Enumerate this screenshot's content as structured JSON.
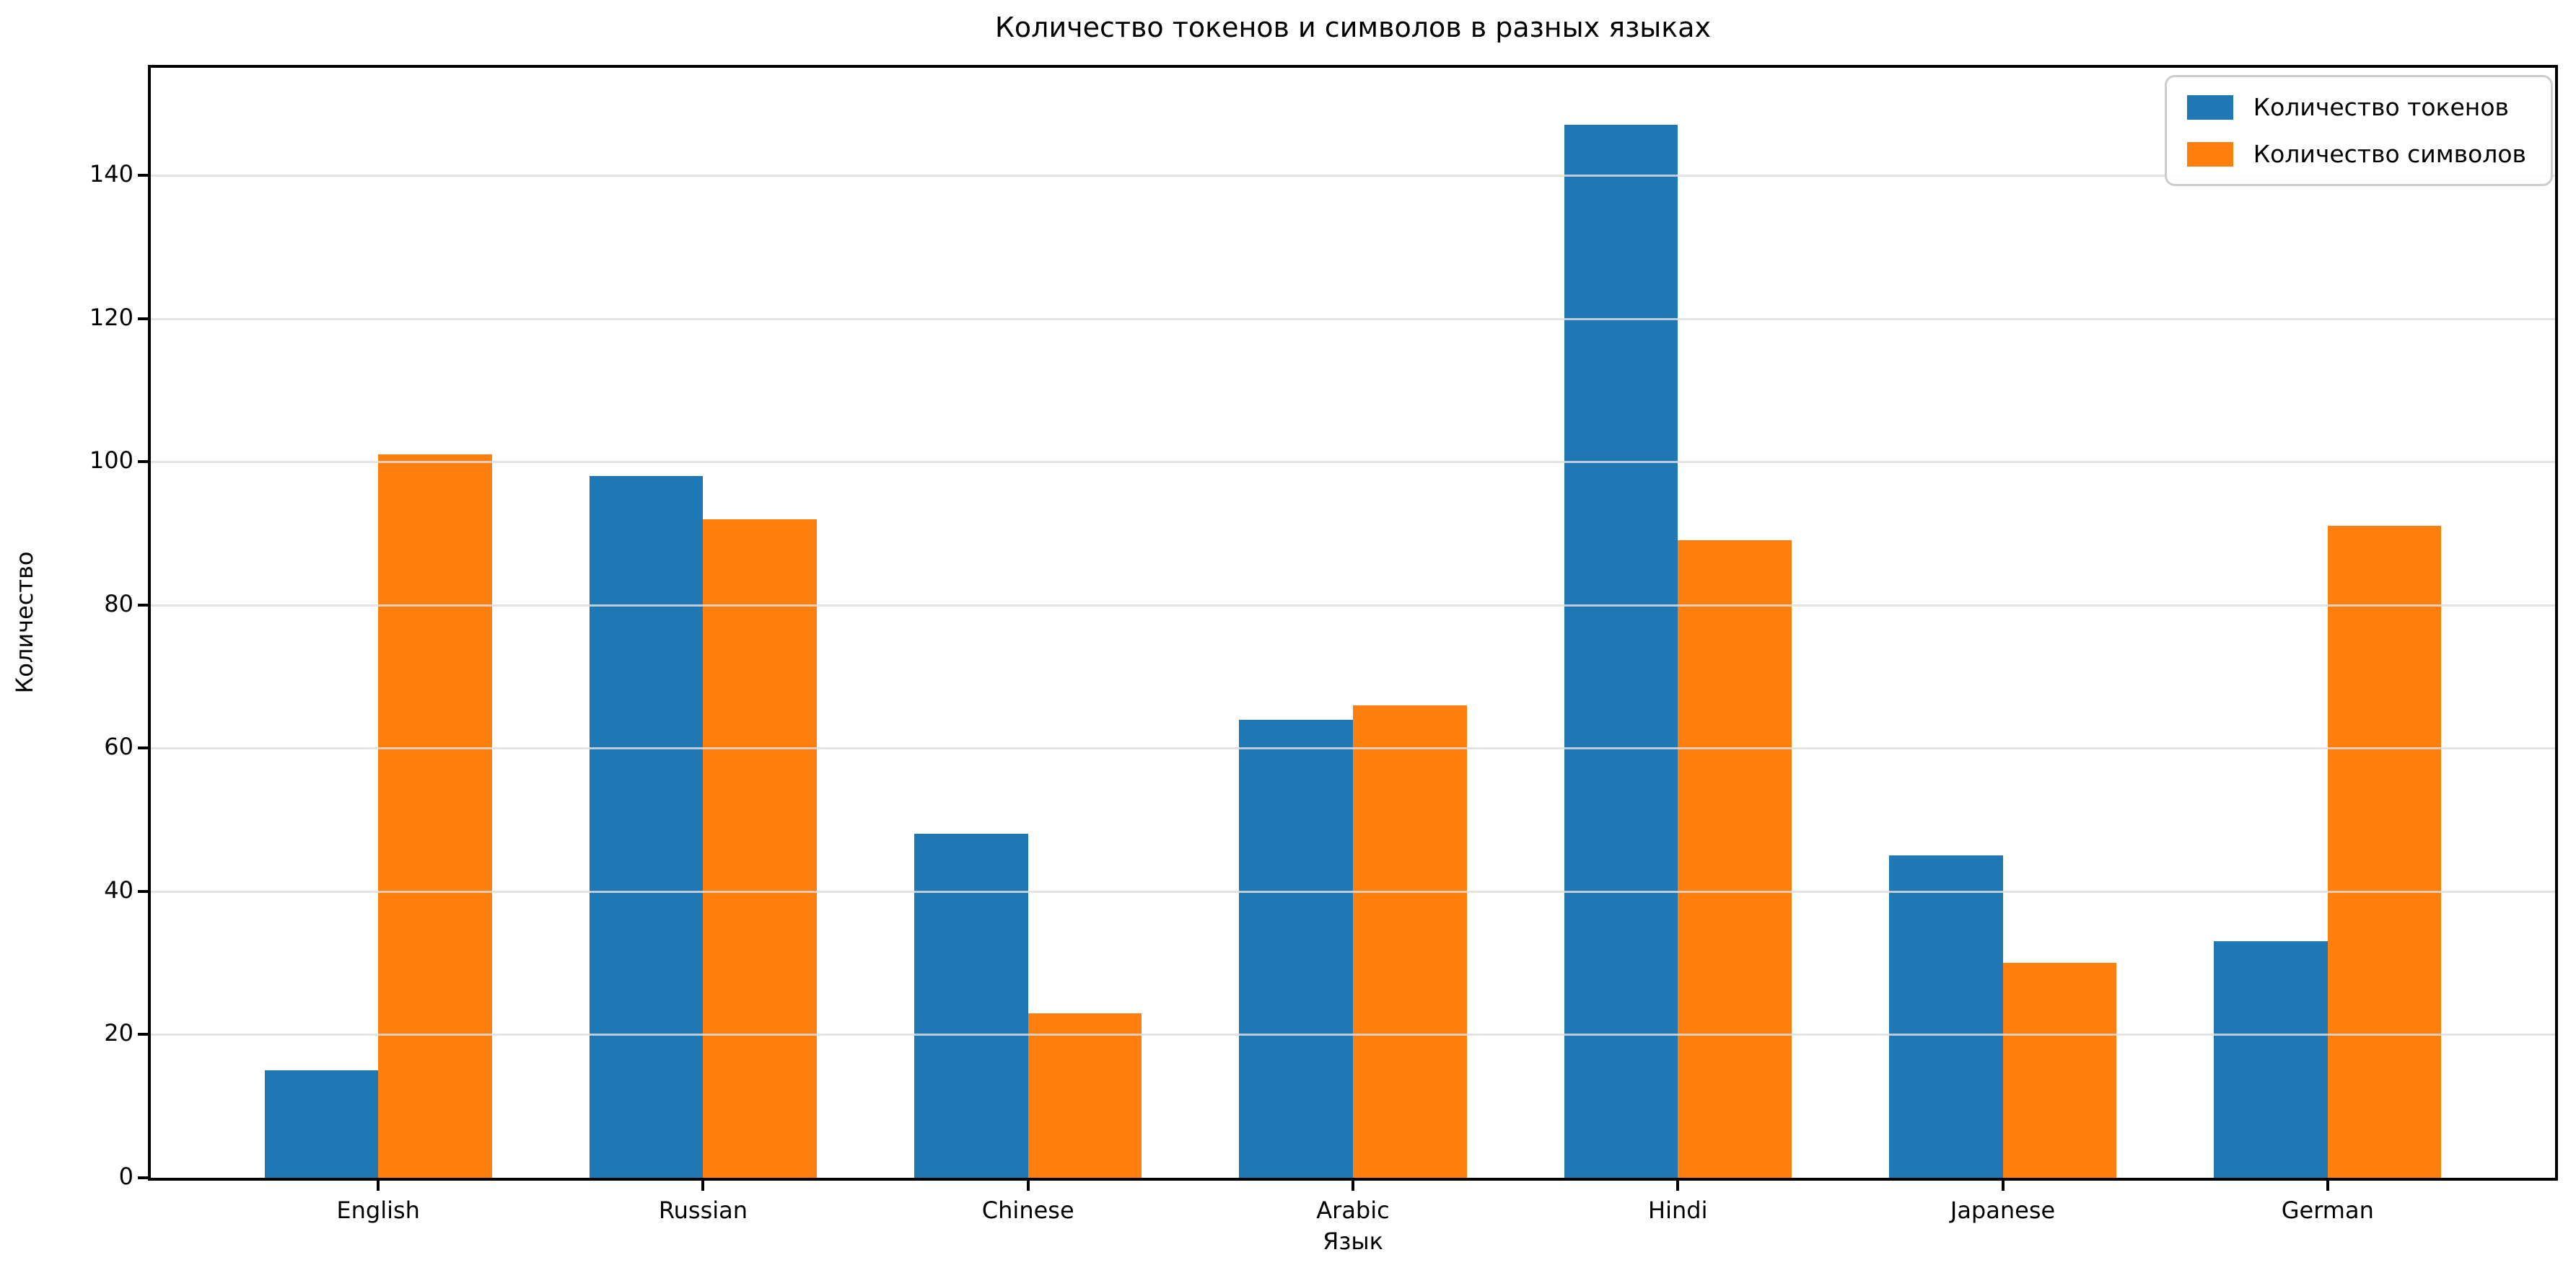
{
  "chart_data": {
    "type": "bar",
    "title": "Количество токенов и символов в разных языках",
    "xlabel": "Язык",
    "ylabel": "Количество",
    "categories": [
      "English",
      "Russian",
      "Chinese",
      "Arabic",
      "Hindi",
      "Japanese",
      "German"
    ],
    "series": [
      {
        "name": "Количество токенов",
        "color": "#1f77b4",
        "values": [
          15,
          98,
          48,
          64,
          147,
          45,
          33
        ]
      },
      {
        "name": "Количество символов",
        "color": "#ff7f0e",
        "values": [
          101,
          92,
          23,
          66,
          89,
          30,
          91
        ]
      }
    ],
    "yticks": [
      0,
      20,
      40,
      60,
      80,
      100,
      120,
      140
    ],
    "ylim": [
      0,
      155
    ],
    "xlim": [
      -0.7,
      6.7
    ],
    "bar_width": 0.35,
    "grid": "y",
    "legend_position": "upper right"
  },
  "colors": {
    "background": "#ffffff",
    "grid": "#dedede",
    "spine": "#000000",
    "series_tokens": "#1f77b4",
    "series_symbols": "#ff7f0e"
  }
}
